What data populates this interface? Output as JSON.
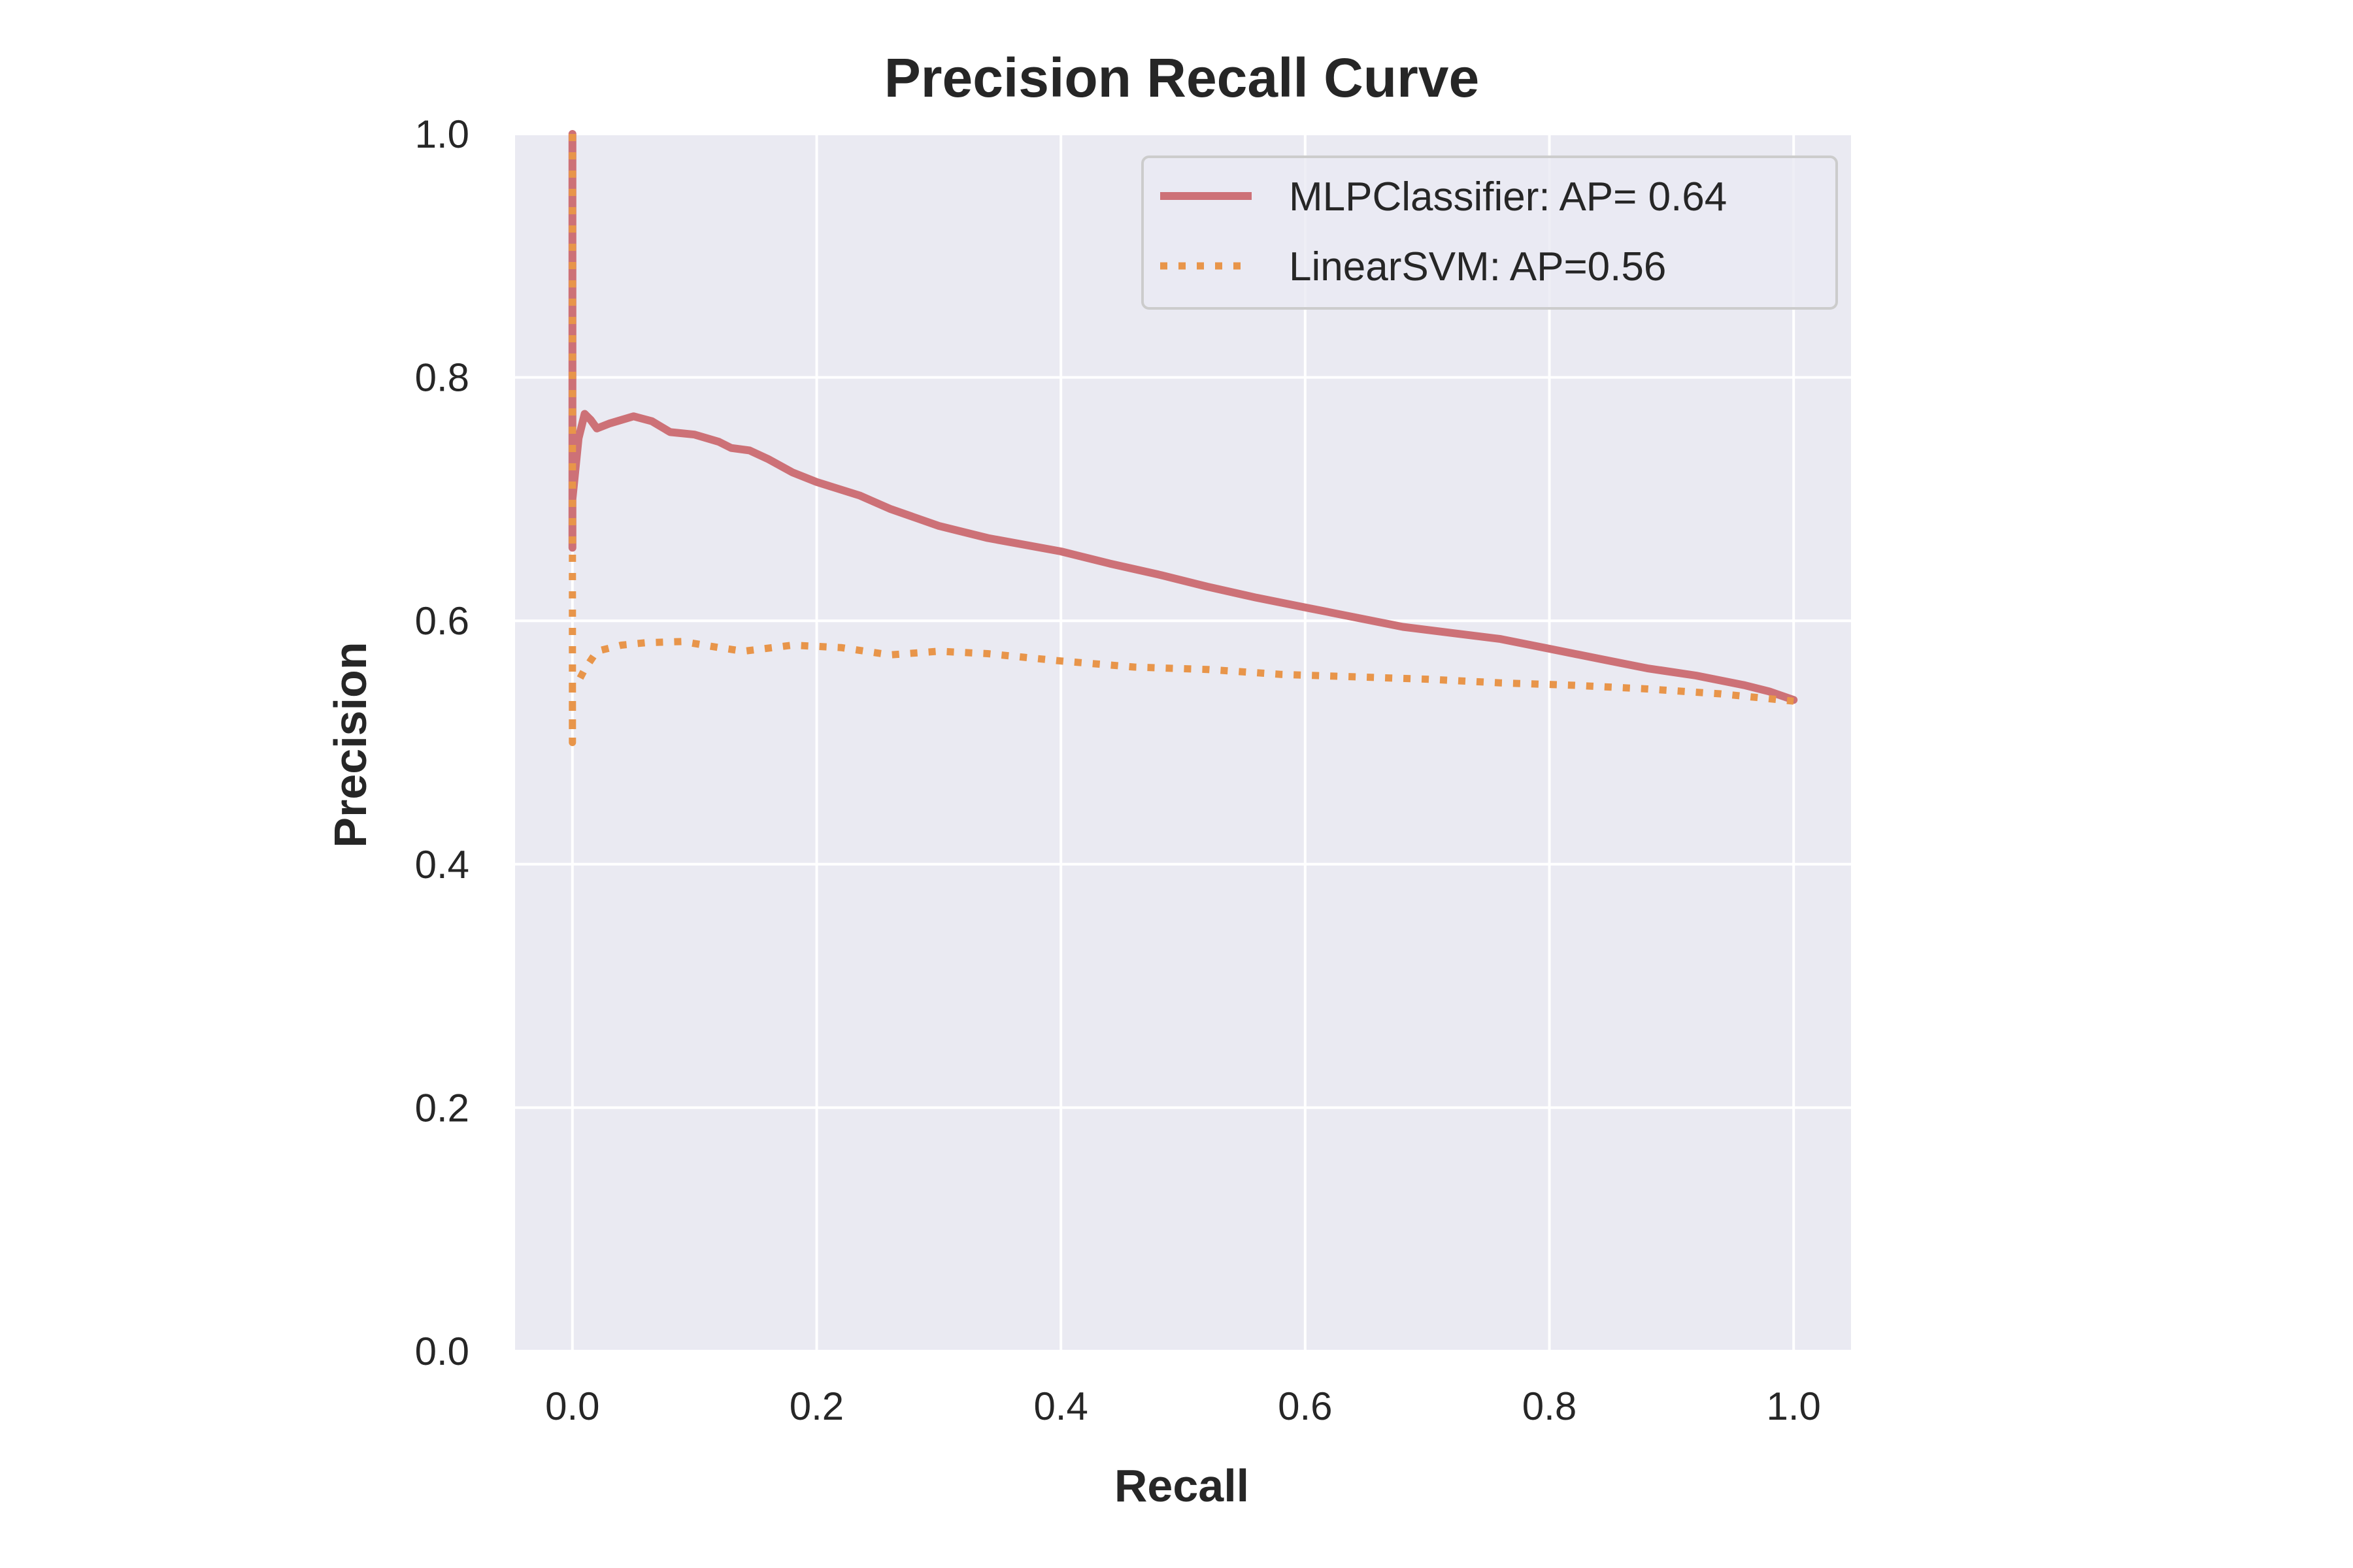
{
  "chart_data": {
    "type": "line",
    "title": "Precision Recall Curve",
    "xlabel": "Recall",
    "ylabel": "Precision",
    "xlim": [
      -0.047,
      1.047
    ],
    "ylim": [
      0.0,
      1.0
    ],
    "xticks": [
      "0.0",
      "0.2",
      "0.4",
      "0.6",
      "0.8",
      "1.0"
    ],
    "yticks": [
      "0.0",
      "0.2",
      "0.4",
      "0.6",
      "0.8",
      "1.0"
    ],
    "grid": true,
    "legend_position": "top-right",
    "background_color": "#eaeaf2",
    "grid_color": "#ffffff",
    "series": [
      {
        "name": "MLPClassifier: AP= 0.64",
        "color": "#cd7177",
        "style": "solid",
        "x": [
          0.0,
          0.0,
          0.0,
          0.002,
          0.005,
          0.01,
          0.015,
          0.02,
          0.03,
          0.05,
          0.065,
          0.08,
          0.1,
          0.12,
          0.13,
          0.145,
          0.16,
          0.18,
          0.2,
          0.235,
          0.26,
          0.3,
          0.34,
          0.4,
          0.44,
          0.48,
          0.52,
          0.56,
          0.6,
          0.64,
          0.68,
          0.72,
          0.76,
          0.8,
          0.84,
          0.88,
          0.92,
          0.96,
          0.98,
          1.0
        ],
        "y": [
          1.0,
          0.66,
          0.7,
          0.72,
          0.75,
          0.77,
          0.765,
          0.758,
          0.762,
          0.768,
          0.764,
          0.755,
          0.753,
          0.747,
          0.742,
          0.74,
          0.733,
          0.722,
          0.714,
          0.703,
          0.692,
          0.678,
          0.668,
          0.657,
          0.647,
          0.638,
          0.628,
          0.619,
          0.611,
          0.603,
          0.595,
          0.59,
          0.585,
          0.577,
          0.569,
          0.561,
          0.555,
          0.547,
          0.542,
          0.535
        ]
      },
      {
        "name": "LinearSVM: AP=0.56",
        "color": "#e8954a",
        "style": "dotted",
        "x": [
          0.0,
          0.0,
          0.0,
          0.0,
          0.002,
          0.01,
          0.02,
          0.04,
          0.06,
          0.09,
          0.12,
          0.14,
          0.18,
          0.22,
          0.26,
          0.3,
          0.34,
          0.4,
          0.46,
          0.52,
          0.58,
          0.64,
          0.7,
          0.76,
          0.82,
          0.88,
          0.94,
          1.0
        ],
        "y": [
          1.0,
          0.66,
          0.5,
          0.545,
          0.545,
          0.56,
          0.575,
          0.58,
          0.582,
          0.583,
          0.578,
          0.575,
          0.58,
          0.578,
          0.572,
          0.575,
          0.573,
          0.567,
          0.562,
          0.56,
          0.556,
          0.554,
          0.552,
          0.549,
          0.547,
          0.544,
          0.54,
          0.534
        ]
      }
    ]
  }
}
